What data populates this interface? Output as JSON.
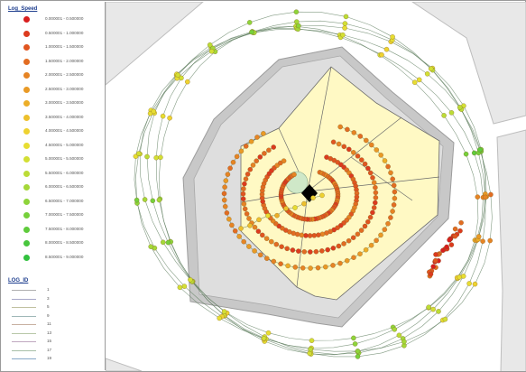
{
  "legend": {
    "speed_title": "Log_Speed",
    "speed_classes": [
      {
        "label": "0.000001 - 0.500000",
        "color": "#d81e1e"
      },
      {
        "label": "0.500001 - 1.000000",
        "color": "#dc3a1e"
      },
      {
        "label": "1.000001 - 1.500000",
        "color": "#e05520"
      },
      {
        "label": "1.500001 - 2.000000",
        "color": "#e26c22"
      },
      {
        "label": "2.000001 - 2.500000",
        "color": "#e68424"
      },
      {
        "label": "2.500001 - 3.000000",
        "color": "#e99a26"
      },
      {
        "label": "3.000001 - 3.500000",
        "color": "#ecae28"
      },
      {
        "label": "3.500001 - 4.000000",
        "color": "#edc02c"
      },
      {
        "label": "4.000001 - 4.500000",
        "color": "#eed230"
      },
      {
        "label": "4.500001 - 5.000000",
        "color": "#e7dd32"
      },
      {
        "label": "5.000001 - 5.500000",
        "color": "#d3df34"
      },
      {
        "label": "5.500001 - 6.000000",
        "color": "#bcdc36"
      },
      {
        "label": "6.000001 - 6.500000",
        "color": "#a5d838"
      },
      {
        "label": "6.500001 - 7.000000",
        "color": "#8ed43a"
      },
      {
        "label": "7.000001 - 7.500000",
        "color": "#76d03b"
      },
      {
        "label": "7.500001 - 8.000000",
        "color": "#5fcb3c"
      },
      {
        "label": "8.000001 - 8.500000",
        "color": "#48c63d"
      },
      {
        "label": "8.500001 - 9.000000",
        "color": "#32c13e"
      }
    ],
    "log_title": "LOG_ID",
    "log_ids": [
      {
        "label": "1",
        "color": "#b0b0b0"
      },
      {
        "label": "3",
        "color": "#a8a8c8"
      },
      {
        "label": "5",
        "color": "#c0c0a0"
      },
      {
        "label": "9",
        "color": "#a0b8b8"
      },
      {
        "label": "11",
        "color": "#c8b0a0"
      },
      {
        "label": "13",
        "color": "#b8c8a8"
      },
      {
        "label": "15",
        "color": "#c0a8c0"
      },
      {
        "label": "17",
        "color": "#a8c0a8"
      },
      {
        "label": "19",
        "color": "#88a8c8"
      }
    ]
  },
  "map_style": {
    "background": "#ffffff",
    "building_fill": "#e8e8e8",
    "building_stroke": "#bdbdbd",
    "stadium_outer_fill": "#c8c8c8",
    "stadium_inner_fill": "#dedede",
    "field_fill": "#fff9c4",
    "field_stroke": "#6b6b6b",
    "center_fill": "#000000",
    "center_ring_fill": "#cfe8c8",
    "track_stroke": "#5a7a5a"
  }
}
